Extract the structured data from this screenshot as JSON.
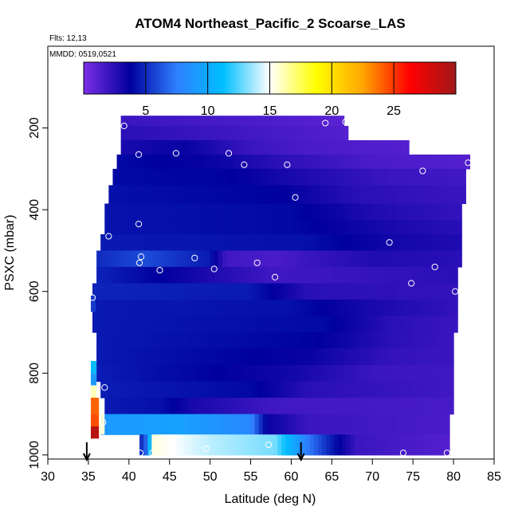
{
  "chart_data": {
    "type": "heatmap",
    "title": "ATOM4 Northeast_Pacific_2 Scoarse_LAS",
    "flights_note": "Flts: 12,13",
    "dates_note": "MMDD: 0519,0521",
    "xlabel": "Latitude (deg N)",
    "ylabel": "PSXC (mbar)",
    "xlim": [
      30,
      85
    ],
    "ylim": [
      1010,
      0
    ],
    "x_ticks": [
      "30",
      "35",
      "40",
      "45",
      "50",
      "55",
      "60",
      "65",
      "70",
      "75",
      "80",
      "85"
    ],
    "y_ticks": [
      "200",
      "400",
      "600",
      "800",
      "1000"
    ],
    "colorbar": {
      "range": [
        0,
        30
      ],
      "ticks": [
        "5",
        "10",
        "15",
        "20",
        "25"
      ],
      "colors": [
        "#7b2ee6",
        "#00009e",
        "#2f7fff",
        "#00bfff",
        "#ffffff",
        "#ffff00",
        "#ffa500",
        "#ff0000",
        "#a01818"
      ]
    },
    "arrows": [
      {
        "lat": 34.8
      },
      {
        "lat": 61.2
      }
    ],
    "bands": [
      {
        "p_top": 170,
        "p_bot": 195,
        "lat_min": 39.0,
        "lat_max": 66.5,
        "vals": [
          [
            39,
            2.0
          ],
          [
            55,
            1.5
          ],
          [
            66.5,
            1.0
          ]
        ]
      },
      {
        "p_top": 195,
        "p_bot": 230,
        "lat_min": 39.0,
        "lat_max": 67.0,
        "vals": [
          [
            39,
            2.5
          ],
          [
            50,
            2.0
          ],
          [
            67,
            1.2
          ]
        ]
      },
      {
        "p_top": 230,
        "p_bot": 265,
        "lat_min": 39.0,
        "lat_max": 74.5,
        "vals": [
          [
            39,
            3.0
          ],
          [
            47,
            3.5
          ],
          [
            55,
            2.0
          ],
          [
            62,
            1.5
          ],
          [
            74.5,
            1.2
          ]
        ]
      },
      {
        "p_top": 265,
        "p_bot": 300,
        "lat_min": 38.5,
        "lat_max": 82.0,
        "vals": [
          [
            38.5,
            4.0
          ],
          [
            50,
            3.5
          ],
          [
            58,
            2.5
          ],
          [
            70,
            1.5
          ],
          [
            82,
            1.2
          ]
        ]
      },
      {
        "p_top": 300,
        "p_bot": 340,
        "lat_min": 38.0,
        "lat_max": 81.5,
        "vals": [
          [
            38,
            4.0
          ],
          [
            52,
            3.8
          ],
          [
            62,
            2.8
          ],
          [
            72,
            2.0
          ],
          [
            81.5,
            1.8
          ]
        ]
      },
      {
        "p_top": 340,
        "p_bot": 385,
        "lat_min": 37.5,
        "lat_max": 81.5,
        "vals": [
          [
            37.5,
            4.2
          ],
          [
            58,
            3.8
          ],
          [
            68,
            2.5
          ],
          [
            81.5,
            2.0
          ]
        ]
      },
      {
        "p_top": 385,
        "p_bot": 425,
        "lat_min": 37.0,
        "lat_max": 81.0,
        "vals": [
          [
            37,
            4.3
          ],
          [
            60,
            4.0
          ],
          [
            70,
            2.8
          ],
          [
            81,
            2.2
          ]
        ]
      },
      {
        "p_top": 425,
        "p_bot": 460,
        "lat_min": 37.0,
        "lat_max": 81.0,
        "vals": [
          [
            37,
            4.3
          ],
          [
            60,
            4.0
          ],
          [
            72,
            3.0
          ],
          [
            81,
            2.5
          ]
        ]
      },
      {
        "p_top": 460,
        "p_bot": 500,
        "lat_min": 36.5,
        "lat_max": 81.0,
        "vals": [
          [
            36.5,
            4.5
          ],
          [
            62,
            4.2
          ],
          [
            72,
            3.2
          ],
          [
            81,
            2.8
          ]
        ]
      },
      {
        "p_top": 500,
        "p_bot": 540,
        "lat_min": 36.0,
        "lat_max": 81.0,
        "vals": [
          [
            36,
            5.0
          ],
          [
            42,
            6.0
          ],
          [
            50,
            4.5
          ],
          [
            52,
            1.8
          ],
          [
            58,
            1.5
          ],
          [
            62,
            2.0
          ],
          [
            70,
            2.8
          ],
          [
            81,
            2.5
          ]
        ]
      },
      {
        "p_top": 540,
        "p_bot": 580,
        "lat_min": 36.0,
        "lat_max": 80.5,
        "vals": [
          [
            36,
            4.8
          ],
          [
            58,
            1.8
          ],
          [
            65,
            2.0
          ],
          [
            80.5,
            2.5
          ]
        ]
      },
      {
        "p_top": 580,
        "p_bot": 620,
        "lat_min": 35.5,
        "lat_max": 80.5,
        "vals": [
          [
            35.5,
            4.8
          ],
          [
            55,
            4.5
          ],
          [
            62,
            2.5
          ],
          [
            80.5,
            2.2
          ]
        ]
      },
      {
        "p_top": 620,
        "p_bot": 660,
        "lat_min": 35.5,
        "lat_max": 80.5,
        "vals": [
          [
            35.5,
            4.5
          ],
          [
            60,
            4.2
          ],
          [
            70,
            3.0
          ],
          [
            80.5,
            2.2
          ]
        ]
      },
      {
        "p_top": 660,
        "p_bot": 700,
        "lat_min": 35.5,
        "lat_max": 80.5,
        "vals": [
          [
            35.5,
            4.5
          ],
          [
            64,
            4.0
          ],
          [
            72,
            2.5
          ],
          [
            80.5,
            2.0
          ]
        ]
      },
      {
        "p_top": 700,
        "p_bot": 740,
        "lat_min": 36.0,
        "lat_max": 80.0,
        "vals": [
          [
            36,
            4.5
          ],
          [
            63,
            3.8
          ],
          [
            72,
            2.5
          ],
          [
            80,
            2.0
          ]
        ]
      },
      {
        "p_top": 740,
        "p_bot": 780,
        "lat_min": 36.0,
        "lat_max": 80.0,
        "vals": [
          [
            36,
            4.5
          ],
          [
            62,
            3.5
          ],
          [
            72,
            2.2
          ],
          [
            80,
            2.0
          ]
        ]
      },
      {
        "p_top": 780,
        "p_bot": 820,
        "lat_min": 36.0,
        "lat_max": 80.0,
        "vals": [
          [
            36,
            4.6
          ],
          [
            60,
            3.2
          ],
          [
            70,
            2.0
          ],
          [
            80,
            1.8
          ]
        ]
      },
      {
        "p_top": 820,
        "p_bot": 860,
        "lat_min": 36.5,
        "lat_max": 80.0,
        "vals": [
          [
            36.5,
            4.6
          ],
          [
            55,
            4.0
          ],
          [
            62,
            2.5
          ],
          [
            80,
            1.8
          ]
        ]
      },
      {
        "p_top": 860,
        "p_bot": 900,
        "lat_min": 37.0,
        "lat_max": 80.0,
        "vals": [
          [
            37,
            4.5
          ],
          [
            44,
            4.2
          ],
          [
            48,
            3.0
          ],
          [
            58,
            1.8
          ],
          [
            80,
            1.6
          ]
        ]
      },
      {
        "p_top": 900,
        "p_bot": 950,
        "lat_min": 36.5,
        "lat_max": 79.5,
        "vals": [
          [
            36.5,
            9.0
          ],
          [
            46,
            9.5
          ],
          [
            55,
            8.0
          ],
          [
            57,
            3.5
          ],
          [
            62,
            2.0
          ],
          [
            79.5,
            1.5
          ]
        ]
      },
      {
        "p_top": 950,
        "p_bot": 1000,
        "lat_min": 41.3,
        "lat_max": 79.5,
        "vals": [
          [
            41.3,
            4.5
          ],
          [
            42.2,
            7.0
          ],
          [
            43,
            15.5
          ],
          [
            50,
            14.0
          ],
          [
            58,
            13.0
          ],
          [
            62,
            7.5
          ],
          [
            65,
            4.5
          ],
          [
            68,
            2.0
          ],
          [
            79.5,
            1.2
          ]
        ]
      }
    ],
    "edge_strips": [
      {
        "lat_min": 35.3,
        "lat_max": 35.9,
        "p_top": 610,
        "p_bot": 650,
        "value": 5.5
      },
      {
        "lat_min": 35.3,
        "lat_max": 36.0,
        "p_top": 770,
        "p_bot": 800,
        "value": 11.0
      },
      {
        "lat_min": 35.3,
        "lat_max": 36.0,
        "p_top": 800,
        "p_bot": 830,
        "value": 9.0
      },
      {
        "lat_min": 35.3,
        "lat_max": 36.0,
        "p_top": 830,
        "p_bot": 860,
        "value": 16.0
      },
      {
        "lat_min": 35.3,
        "lat_max": 36.3,
        "p_top": 860,
        "p_bot": 900,
        "value": 24.0
      },
      {
        "lat_min": 35.3,
        "lat_max": 36.3,
        "p_top": 900,
        "p_bot": 930,
        "value": 24.5
      },
      {
        "lat_min": 35.3,
        "lat_max": 36.3,
        "p_top": 930,
        "p_bot": 960,
        "value": 29.0
      },
      {
        "lat_min": 36.3,
        "lat_max": 37.0,
        "p_top": 900,
        "p_bot": 950,
        "value": 15.5
      }
    ],
    "sample_points": [
      [
        39.4,
        195
      ],
      [
        41.2,
        265
      ],
      [
        45.8,
        262
      ],
      [
        52.3,
        262
      ],
      [
        54.2,
        290
      ],
      [
        59.5,
        290
      ],
      [
        64.2,
        188
      ],
      [
        66.7,
        185
      ],
      [
        69.2,
        220
      ],
      [
        76.2,
        305
      ],
      [
        81.8,
        285
      ],
      [
        60.5,
        370
      ],
      [
        41.2,
        435
      ],
      [
        37.5,
        465
      ],
      [
        41.5,
        515
      ],
      [
        41.3,
        530
      ],
      [
        43.8,
        548
      ],
      [
        48.1,
        518
      ],
      [
        50.5,
        545
      ],
      [
        55.8,
        530
      ],
      [
        58.0,
        565
      ],
      [
        72.1,
        480
      ],
      [
        77.7,
        540
      ],
      [
        74.8,
        580
      ],
      [
        80.2,
        600
      ],
      [
        35.5,
        615
      ],
      [
        37.0,
        835
      ],
      [
        36.8,
        920
      ],
      [
        41.4,
        995
      ],
      [
        42.9,
        995
      ],
      [
        49.5,
        985
      ],
      [
        57.2,
        975
      ],
      [
        73.8,
        995
      ],
      [
        79.2,
        995
      ]
    ]
  }
}
